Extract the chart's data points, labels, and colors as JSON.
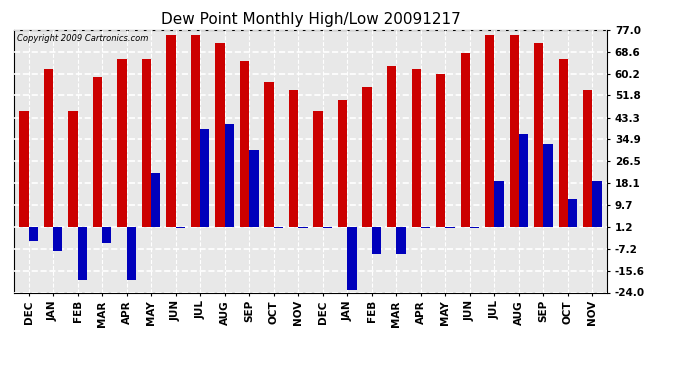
{
  "title": "Dew Point Monthly High/Low 20091217",
  "copyright": "Copyright 2009 Cartronics.com",
  "months": [
    "DEC",
    "JAN",
    "FEB",
    "MAR",
    "APR",
    "MAY",
    "JUN",
    "JUL",
    "AUG",
    "SEP",
    "OCT",
    "NOV",
    "DEC",
    "JAN",
    "FEB",
    "MAR",
    "APR",
    "MAY",
    "JUN",
    "JUL",
    "AUG",
    "SEP",
    "OCT",
    "NOV"
  ],
  "highs": [
    46,
    62,
    46,
    59,
    66,
    66,
    75,
    75,
    72,
    65,
    57,
    54,
    46,
    50,
    55,
    63,
    62,
    60,
    68,
    75,
    75,
    72,
    66,
    54
  ],
  "lows": [
    -4,
    -8,
    -19,
    -5,
    -19,
    22,
    1,
    39,
    41,
    31,
    1,
    1,
    1,
    -23,
    -9,
    -9,
    1,
    1,
    1,
    19,
    37,
    33,
    12,
    19
  ],
  "bar_color_high": "#cc0000",
  "bar_color_low": "#0000bb",
  "bg_color": "#ffffff",
  "plot_bg_color": "#e8e8e8",
  "grid_color": "#ffffff",
  "yticks": [
    77.0,
    68.6,
    60.2,
    51.8,
    43.3,
    34.9,
    26.5,
    18.1,
    9.7,
    1.2,
    -7.2,
    -15.6,
    -24.0
  ],
  "ylim": [
    -24.0,
    77.0
  ],
  "title_fontsize": 11,
  "tick_fontsize": 7.5,
  "bar_width": 0.38,
  "baseline": 1.2
}
